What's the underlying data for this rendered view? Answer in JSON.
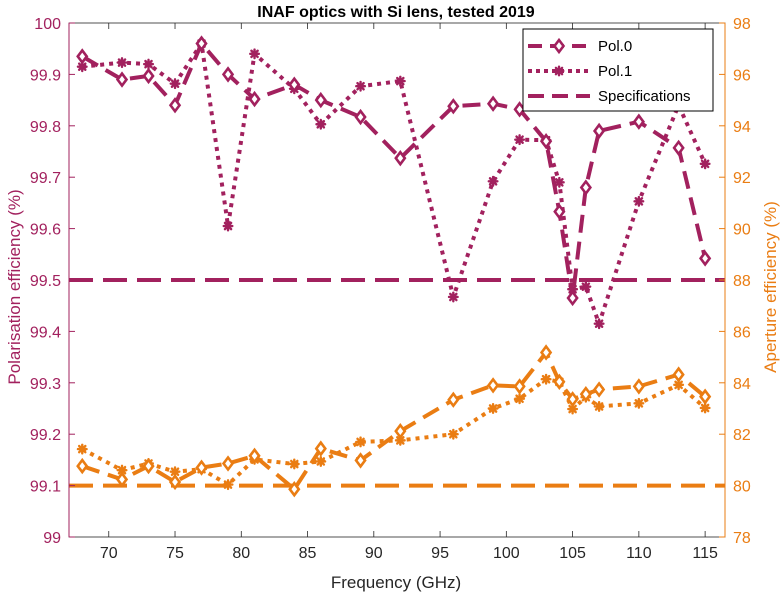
{
  "chart_data": {
    "type": "line",
    "title": "INAF optics with Si lens, tested 2019",
    "xlabel": "Frequency (GHz)",
    "ylabel_left": "Polarisation efficiency (%)",
    "ylabel_right": "Aperture efficiency (%)",
    "xlim": [
      67,
      116.5
    ],
    "xticks": [
      70,
      75,
      80,
      85,
      90,
      95,
      100,
      105,
      110,
      115
    ],
    "ylim_left": [
      99.0,
      100.0
    ],
    "yticks_left": [
      99,
      99.1,
      99.2,
      99.3,
      99.4,
      99.5,
      99.6,
      99.7,
      99.8,
      99.9,
      100
    ],
    "ylim_right": [
      78,
      98
    ],
    "yticks_right": [
      78,
      80,
      82,
      84,
      86,
      88,
      90,
      92,
      94,
      96,
      98
    ],
    "grid": false,
    "legend_position": "top-right",
    "colors": {
      "left_axis": "#a2215e",
      "right_axis": "#ea7d13"
    },
    "legend": [
      "Pol.0",
      "Pol.1",
      "Specifications"
    ],
    "polarisation": {
      "pol0": {
        "x": [
          68,
          71,
          73,
          75,
          77,
          79,
          81,
          84,
          86,
          89,
          92,
          96,
          99,
          101,
          103,
          104,
          105,
          106,
          107,
          110,
          113,
          115
        ],
        "y": [
          99.935,
          99.89,
          99.897,
          99.84,
          99.96,
          99.9,
          99.852,
          99.88,
          99.85,
          99.817,
          99.737,
          99.838,
          99.843,
          99.832,
          99.77,
          99.633,
          99.465,
          99.68,
          99.79,
          99.808,
          99.757,
          99.542
        ]
      },
      "pol1": {
        "x": [
          68,
          71,
          73,
          75,
          77,
          79,
          81,
          84,
          86,
          89,
          92,
          96,
          99,
          101,
          103,
          104,
          105,
          106,
          107,
          110,
          113,
          115
        ],
        "y": [
          99.915,
          99.923,
          99.92,
          99.882,
          99.96,
          99.605,
          99.94,
          99.872,
          99.803,
          99.877,
          99.887,
          99.467,
          99.692,
          99.773,
          99.772,
          99.69,
          99.482,
          99.487,
          99.415,
          99.653,
          99.84,
          99.726
        ]
      },
      "specification": 99.5
    },
    "aperture": {
      "pol0": {
        "x": [
          68,
          71,
          73,
          75,
          77,
          79,
          81,
          84,
          86,
          89,
          92,
          96,
          99,
          101,
          103,
          104,
          105,
          106,
          107,
          110,
          113,
          115
        ],
        "y": [
          80.76,
          80.24,
          80.76,
          80.14,
          80.7,
          80.86,
          81.16,
          79.86,
          81.44,
          80.98,
          82.12,
          83.34,
          83.9,
          83.86,
          85.18,
          84.04,
          83.36,
          83.56,
          83.74,
          83.86,
          84.32,
          83.46
        ]
      },
      "pol1": {
        "x": [
          68,
          71,
          73,
          75,
          77,
          79,
          81,
          84,
          86,
          89,
          92,
          96,
          99,
          101,
          103,
          104,
          105,
          106,
          107,
          110,
          113,
          115
        ],
        "y": [
          81.42,
          80.6,
          80.86,
          80.54,
          80.64,
          80.04,
          81.02,
          80.84,
          80.94,
          81.7,
          81.76,
          82.0,
          83.0,
          83.38,
          84.14,
          84.04,
          82.98,
          83.44,
          83.08,
          83.2,
          83.92,
          83.02
        ]
      },
      "specification": 80
    }
  }
}
